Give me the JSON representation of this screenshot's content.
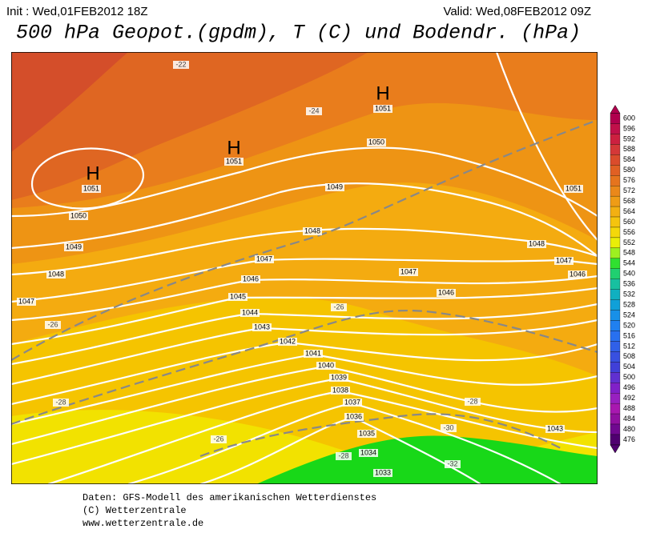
{
  "header": {
    "init": "Init : Wed,01FEB2012 18Z",
    "valid": "Valid: Wed,08FEB2012 09Z",
    "title": "500 hPa Geopot.(gpdm), T (C) und Bodendr. (hPa)"
  },
  "footer": [
    "Daten: GFS-Modell des amerikanischen Wetterdienstes",
    "(C) Wetterzentrale",
    "www.wetterzentrale.de"
  ],
  "map": {
    "highs": [
      "H",
      "H",
      "H"
    ],
    "isobar_labels": [
      1051,
      1051,
      1051,
      1050,
      1050,
      1049,
      1048,
      1047,
      1049,
      1048,
      1047,
      1046,
      1045,
      1044,
      1043,
      1042,
      1041,
      1040,
      1039,
      1038,
      1037,
      1036,
      1035,
      1034,
      1033,
      1048,
      1047,
      1046,
      1047,
      1046,
      1051,
      1043
    ],
    "temperature_labels": [
      -22,
      -24,
      -26,
      -26,
      -28,
      -28,
      -26,
      -28,
      -30,
      -32
    ]
  },
  "colorbar": {
    "values": [
      600,
      596,
      592,
      588,
      584,
      580,
      576,
      572,
      568,
      564,
      560,
      556,
      552,
      548,
      544,
      540,
      536,
      532,
      528,
      524,
      520,
      516,
      512,
      508,
      504,
      500,
      496,
      492,
      488,
      484,
      480,
      476
    ],
    "colors": [
      "#b0004e",
      "#c0104a",
      "#cc2040",
      "#d43838",
      "#da4c2c",
      "#e06024",
      "#e5741e",
      "#ea881a",
      "#ef9c16",
      "#f3b012",
      "#f5c40e",
      "#f4d80a",
      "#eaee08",
      "#9ef020",
      "#30e030",
      "#20d070",
      "#18c0a0",
      "#10b0c0",
      "#10a0d8",
      "#1890e8",
      "#2080f0",
      "#2870f0",
      "#3060e8",
      "#3850e0",
      "#4040d8",
      "#6030d0",
      "#8020c8",
      "#9820c0",
      "#a818b0",
      "#9010a0",
      "#700890",
      "#500070"
    ]
  }
}
